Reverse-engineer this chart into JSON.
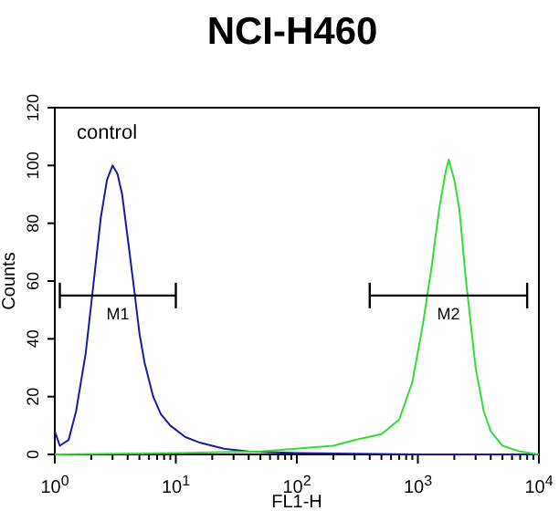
{
  "chart_data": {
    "type": "line",
    "title": "NCI-H460",
    "xlabel": "FL1-H",
    "ylabel": "Counts",
    "log": "x",
    "xlim": [
      1,
      10000
    ],
    "ylim": [
      0,
      120
    ],
    "xticks": [
      {
        "value": 1,
        "label": "10$^{0}$"
      },
      {
        "value": 2,
        "label": null
      },
      {
        "value": 3,
        "label": null
      },
      {
        "value": 4,
        "label": null
      },
      {
        "value": 5,
        "label": null
      },
      {
        "value": 6,
        "label": null
      },
      {
        "value": 7,
        "label": null
      },
      {
        "value": 8,
        "label": null
      },
      {
        "value": 9,
        "label": null
      },
      {
        "value": 10,
        "label": "10$^{1}$"
      },
      {
        "value": 20,
        "label": null
      },
      {
        "value": 30,
        "label": null
      },
      {
        "value": 40,
        "label": null
      },
      {
        "value": 50,
        "label": null
      },
      {
        "value": 60,
        "label": null
      },
      {
        "value": 70,
        "label": null
      },
      {
        "value": 80,
        "label": null
      },
      {
        "value": 90,
        "label": null
      },
      {
        "value": 100,
        "label": "10$^{2}$"
      },
      {
        "value": 200,
        "label": null
      },
      {
        "value": 300,
        "label": null
      },
      {
        "value": 400,
        "label": null
      },
      {
        "value": 500,
        "label": null
      },
      {
        "value": 600,
        "label": null
      },
      {
        "value": 700,
        "label": null
      },
      {
        "value": 800,
        "label": null
      },
      {
        "value": 900,
        "label": null
      },
      {
        "value": 1000,
        "label": "10$^{3}$"
      },
      {
        "value": 2000,
        "label": null
      },
      {
        "value": 3000,
        "label": null
      },
      {
        "value": 4000,
        "label": null
      },
      {
        "value": 5000,
        "label": null
      },
      {
        "value": 6000,
        "label": null
      },
      {
        "value": 7000,
        "label": null
      },
      {
        "value": 8000,
        "label": null
      },
      {
        "value": 9000,
        "label": null
      },
      {
        "value": 10000,
        "label": "10$^{4}$"
      }
    ],
    "yticks": [
      0,
      20,
      40,
      60,
      80,
      100,
      120
    ],
    "grid": false,
    "series": [
      {
        "color": "#1a1aa0",
        "x": [
          1,
          1.1,
          1.3,
          1.5,
          1.8,
          2.1,
          2.4,
          2.7,
          3.0,
          3.3,
          3.6,
          4.0,
          4.5,
          5,
          5.5,
          6.5,
          7.5,
          9,
          12,
          16,
          25,
          40,
          100,
          1000,
          10000
        ],
        "values": [
          8,
          3,
          5,
          15,
          35,
          60,
          82,
          95,
          100,
          97,
          90,
          75,
          58,
          42,
          32,
          20,
          14,
          10,
          6,
          4,
          2,
          1,
          0.5,
          0,
          0
        ]
      },
      {
        "color": "#33dd33",
        "x": [
          1,
          10,
          50,
          200,
          300,
          500,
          700,
          900,
          1100,
          1300,
          1500,
          1700,
          1800,
          2000,
          2200,
          2500,
          3000,
          3500,
          4000,
          5000,
          7000,
          10000
        ],
        "values": [
          0,
          0.5,
          1,
          3,
          5,
          7,
          12,
          25,
          45,
          65,
          85,
          98,
          102,
          95,
          85,
          60,
          30,
          15,
          8,
          3,
          1,
          0
        ]
      },
      {
        "color": "#000000",
        "x": [
          1.1,
          10
        ],
        "values": [
          55,
          55
        ]
      },
      {
        "color": "#000000",
        "x": [
          400,
          8000
        ],
        "values": [
          55,
          55
        ]
      }
    ],
    "annotations": [
      "control",
      "M1",
      "M2"
    ]
  }
}
